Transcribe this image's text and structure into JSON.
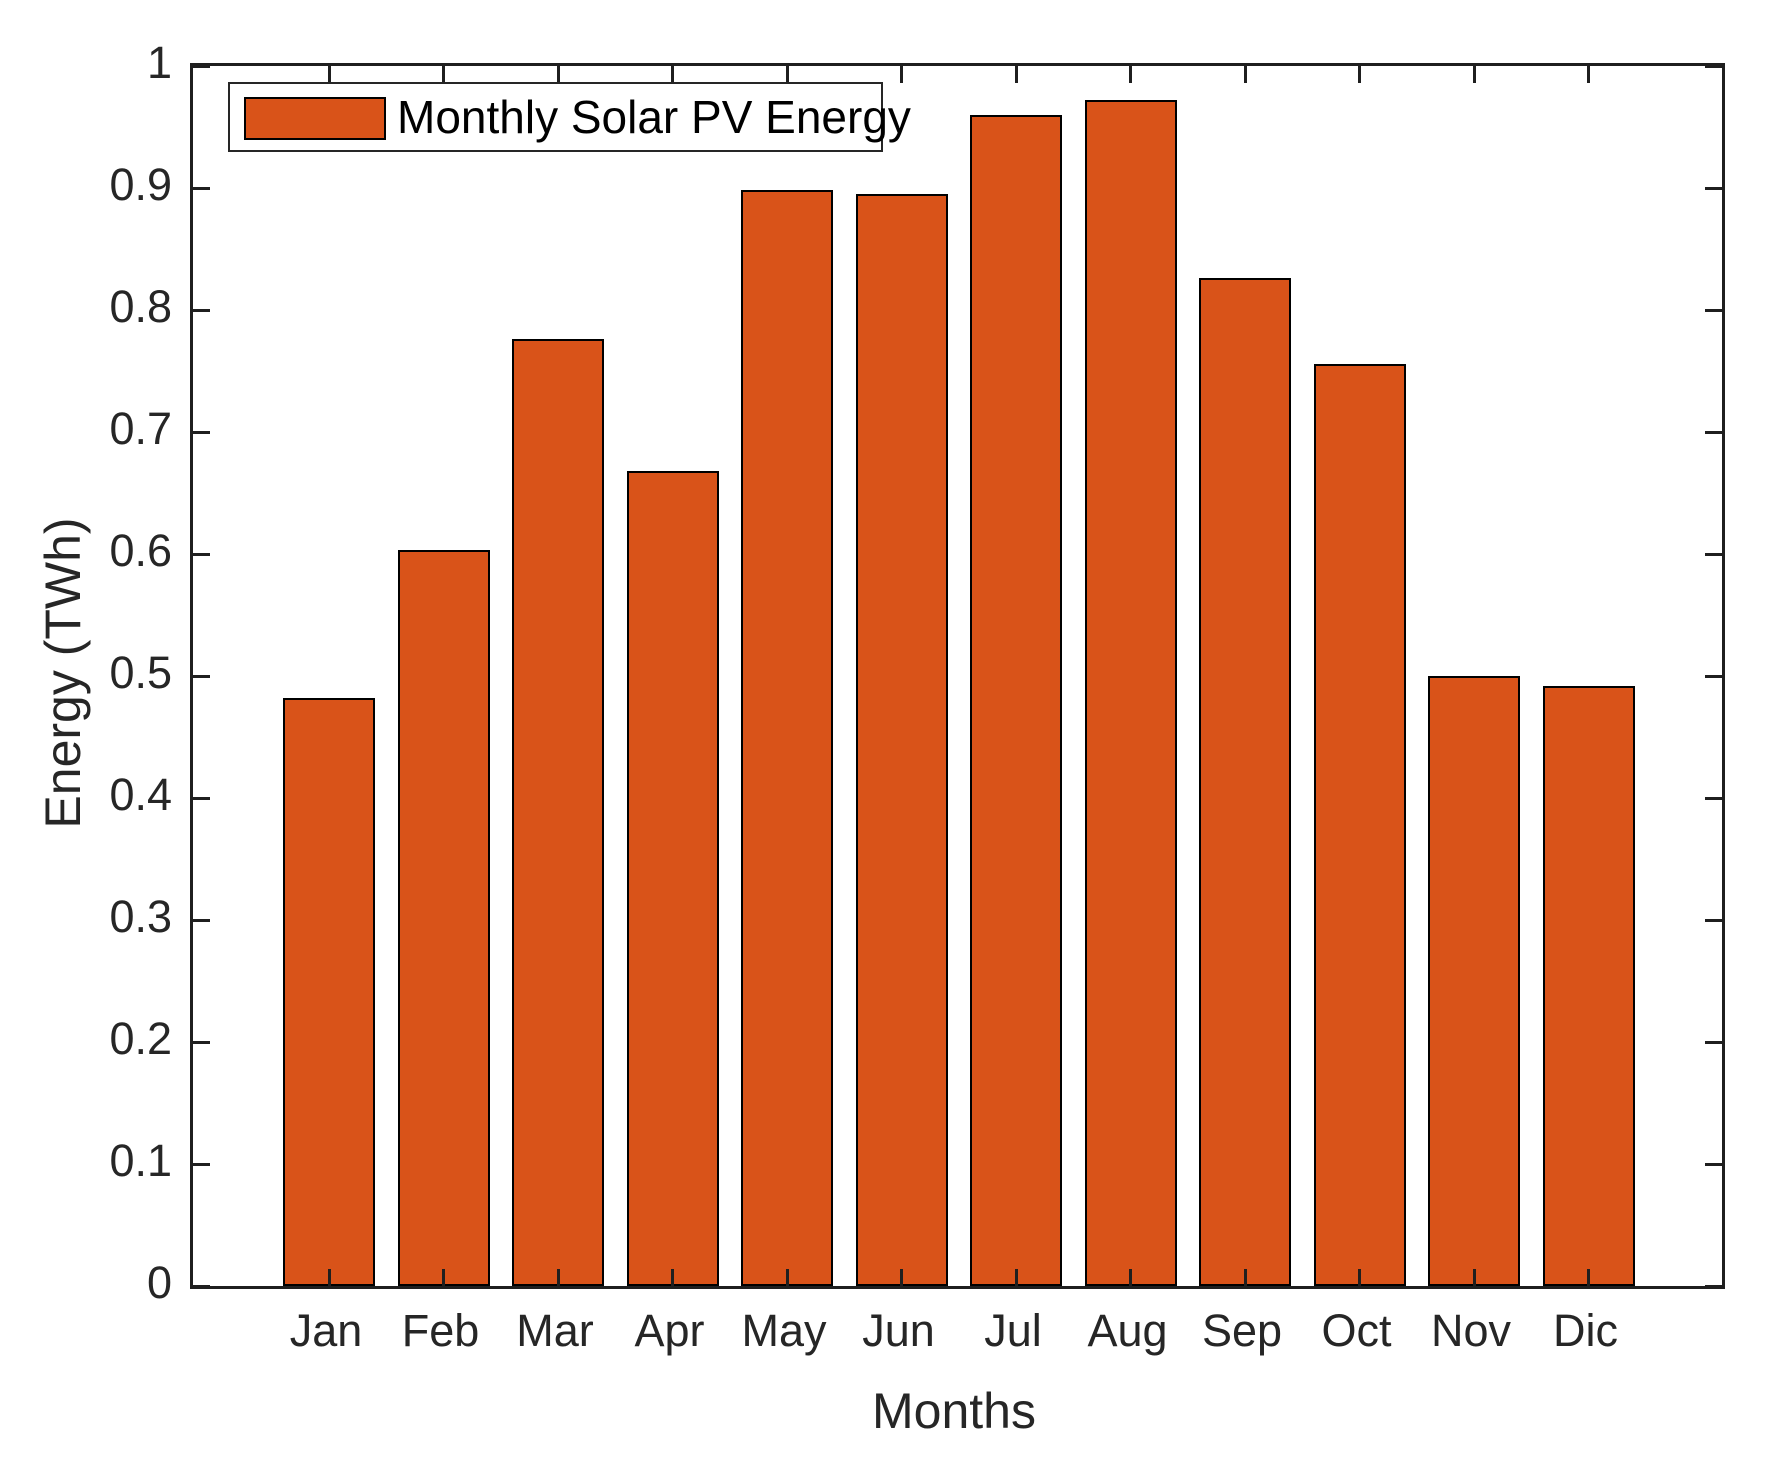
{
  "figure": {
    "background": "#ffffff",
    "axis_color": "#1f1f1f",
    "text_color": "#262626"
  },
  "legend": {
    "label": "Monthly Solar PV Energy",
    "swatch_color": "#D95319",
    "position": "top-left"
  },
  "chart_data": {
    "type": "bar",
    "title": "",
    "series_name": "Monthly Solar PV Energy",
    "categories": [
      "Jan",
      "Feb",
      "Mar",
      "Apr",
      "May",
      "Jun",
      "Jul",
      "Aug",
      "Sep",
      "Oct",
      "Nov",
      "Dic"
    ],
    "values": [
      0.482,
      0.603,
      0.776,
      0.668,
      0.898,
      0.895,
      0.96,
      0.972,
      0.826,
      0.756,
      0.5,
      0.492
    ],
    "xlabel": "Months",
    "ylabel": "Energy (TWh)",
    "ylim": [
      0,
      1
    ],
    "yticks": [
      0,
      0.1,
      0.2,
      0.3,
      0.4,
      0.5,
      0.6,
      0.7,
      0.8,
      0.9,
      1
    ],
    "ytick_labels": [
      "0",
      "0.1",
      "0.2",
      "0.3",
      "0.4",
      "0.5",
      "0.6",
      "0.7",
      "0.8",
      "0.9",
      "1"
    ],
    "bar_color": "#D95319",
    "bar_edge_color": "#000000",
    "grid": false,
    "legend_position": "top-left",
    "tick_direction": "in",
    "box": true
  }
}
